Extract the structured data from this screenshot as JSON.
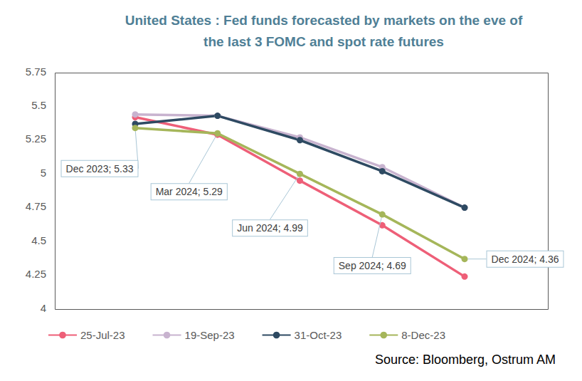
{
  "chart_data": {
    "type": "line",
    "title": "United States : Fed funds forecasted by markets on the eve of\nthe last 3 FOMC and spot rate futures",
    "source": "Source: Bloomberg, Ostrum AM",
    "categories": [
      "Dec 2023",
      "Mar 2024",
      "Jun 2024",
      "Sep 2024",
      "Dec 2024"
    ],
    "series": [
      {
        "name": "25-Jul-23",
        "color": "#EE5F78",
        "values": [
          5.41,
          5.28,
          4.94,
          4.61,
          4.23
        ]
      },
      {
        "name": "19-Sep-23",
        "color": "#C8B3CF",
        "values": [
          5.43,
          5.42,
          5.26,
          5.04,
          4.74
        ]
      },
      {
        "name": "31-Oct-23",
        "color": "#2E4A62",
        "values": [
          5.36,
          5.42,
          5.24,
          5.01,
          4.74
        ]
      },
      {
        "name": "8-Dec-23",
        "color": "#A5B65A",
        "values": [
          5.33,
          5.29,
          4.99,
          4.69,
          4.36
        ],
        "data_labels": true,
        "value_labels": [
          "Dec 2023; 5.33",
          "Mar 2024; 5.29",
          "Jun 2024; 4.99",
          "Sep 2024; 4.69",
          "Dec 2024; 4.36"
        ]
      }
    ],
    "ylim": [
      4,
      5.75
    ],
    "yticks": [
      4,
      4.25,
      4.5,
      4.75,
      5,
      5.25,
      5.5,
      5.75
    ],
    "grid": false,
    "legend": "bottom",
    "tick_labels": "y",
    "marker": "circle",
    "line_style": "solid"
  }
}
